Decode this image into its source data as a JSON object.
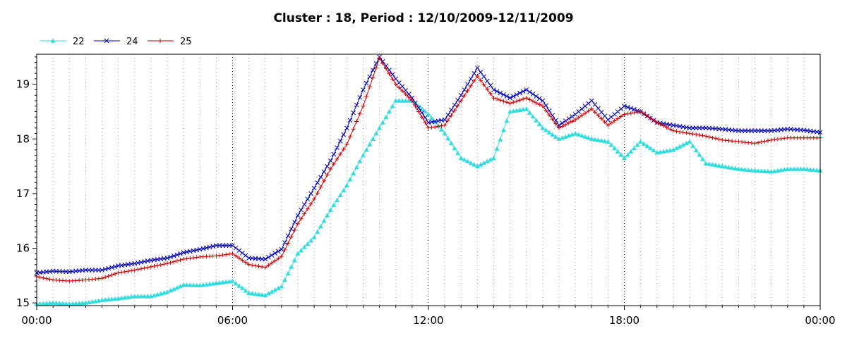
{
  "chart_data": {
    "type": "line",
    "title": "Cluster : 18, Period : 12/10/2009-12/11/2009",
    "xlabel": "",
    "ylabel": "",
    "x_tick_labels": [
      "00:00",
      "06:00",
      "12:00",
      "18:00",
      "00:00"
    ],
    "x_ticks_hours": [
      0,
      6,
      12,
      18,
      24
    ],
    "xlim_hours": [
      0,
      24
    ],
    "y_ticks": [
      15,
      16,
      17,
      18,
      19
    ],
    "ylim": [
      14.95,
      19.55
    ],
    "grid": "dotted",
    "legend_position": "top-left",
    "x_hours": [
      0,
      0.5,
      1,
      1.5,
      2,
      2.5,
      3,
      3.5,
      4,
      4.5,
      5,
      5.5,
      6,
      6.5,
      7,
      7.5,
      8,
      8.5,
      9,
      9.5,
      10,
      10.5,
      11,
      11.5,
      12,
      12.5,
      13,
      13.5,
      14,
      14.5,
      15,
      15.5,
      16,
      16.5,
      17,
      17.5,
      18,
      18.5,
      19,
      19.5,
      20,
      20.5,
      21,
      21.5,
      22,
      22.5,
      23,
      23.5,
      24
    ],
    "series": [
      {
        "name": "22",
        "color": "#33dddd",
        "marker": "triangle",
        "values": [
          14.98,
          15.0,
          14.98,
          15.0,
          15.05,
          15.08,
          15.12,
          15.12,
          15.2,
          15.33,
          15.32,
          15.36,
          15.4,
          15.18,
          15.14,
          15.3,
          15.9,
          16.2,
          16.7,
          17.15,
          17.7,
          18.2,
          18.7,
          18.7,
          18.45,
          18.1,
          17.65,
          17.5,
          17.65,
          18.5,
          18.55,
          18.2,
          18.0,
          18.1,
          18.0,
          17.95,
          17.65,
          17.95,
          17.75,
          17.8,
          17.95,
          17.55,
          17.5,
          17.45,
          17.42,
          17.4,
          17.45,
          17.45,
          17.42
        ]
      },
      {
        "name": "24",
        "color": "#0000bb",
        "marker": "x",
        "values": [
          15.55,
          15.58,
          15.57,
          15.6,
          15.6,
          15.68,
          15.72,
          15.78,
          15.82,
          15.92,
          15.98,
          16.05,
          16.05,
          15.82,
          15.8,
          15.98,
          16.6,
          17.1,
          17.6,
          18.2,
          18.9,
          19.5,
          19.1,
          18.75,
          18.3,
          18.35,
          18.8,
          19.3,
          18.9,
          18.75,
          18.9,
          18.7,
          18.25,
          18.45,
          18.7,
          18.35,
          18.6,
          18.5,
          18.3,
          18.25,
          18.2,
          18.2,
          18.18,
          18.15,
          18.15,
          18.15,
          18.18,
          18.16,
          18.12
        ]
      },
      {
        "name": "25",
        "color": "#cc0000",
        "marker": "plus",
        "values": [
          15.48,
          15.42,
          15.4,
          15.42,
          15.45,
          15.55,
          15.6,
          15.66,
          15.72,
          15.8,
          15.84,
          15.86,
          15.9,
          15.7,
          15.65,
          15.85,
          16.45,
          16.9,
          17.45,
          17.9,
          18.6,
          19.48,
          19.0,
          18.7,
          18.2,
          18.25,
          18.7,
          19.15,
          18.75,
          18.65,
          18.75,
          18.6,
          18.2,
          18.35,
          18.55,
          18.25,
          18.45,
          18.5,
          18.3,
          18.15,
          18.1,
          18.05,
          17.98,
          17.95,
          17.92,
          17.98,
          18.02,
          18.02,
          18.02
        ]
      }
    ]
  }
}
